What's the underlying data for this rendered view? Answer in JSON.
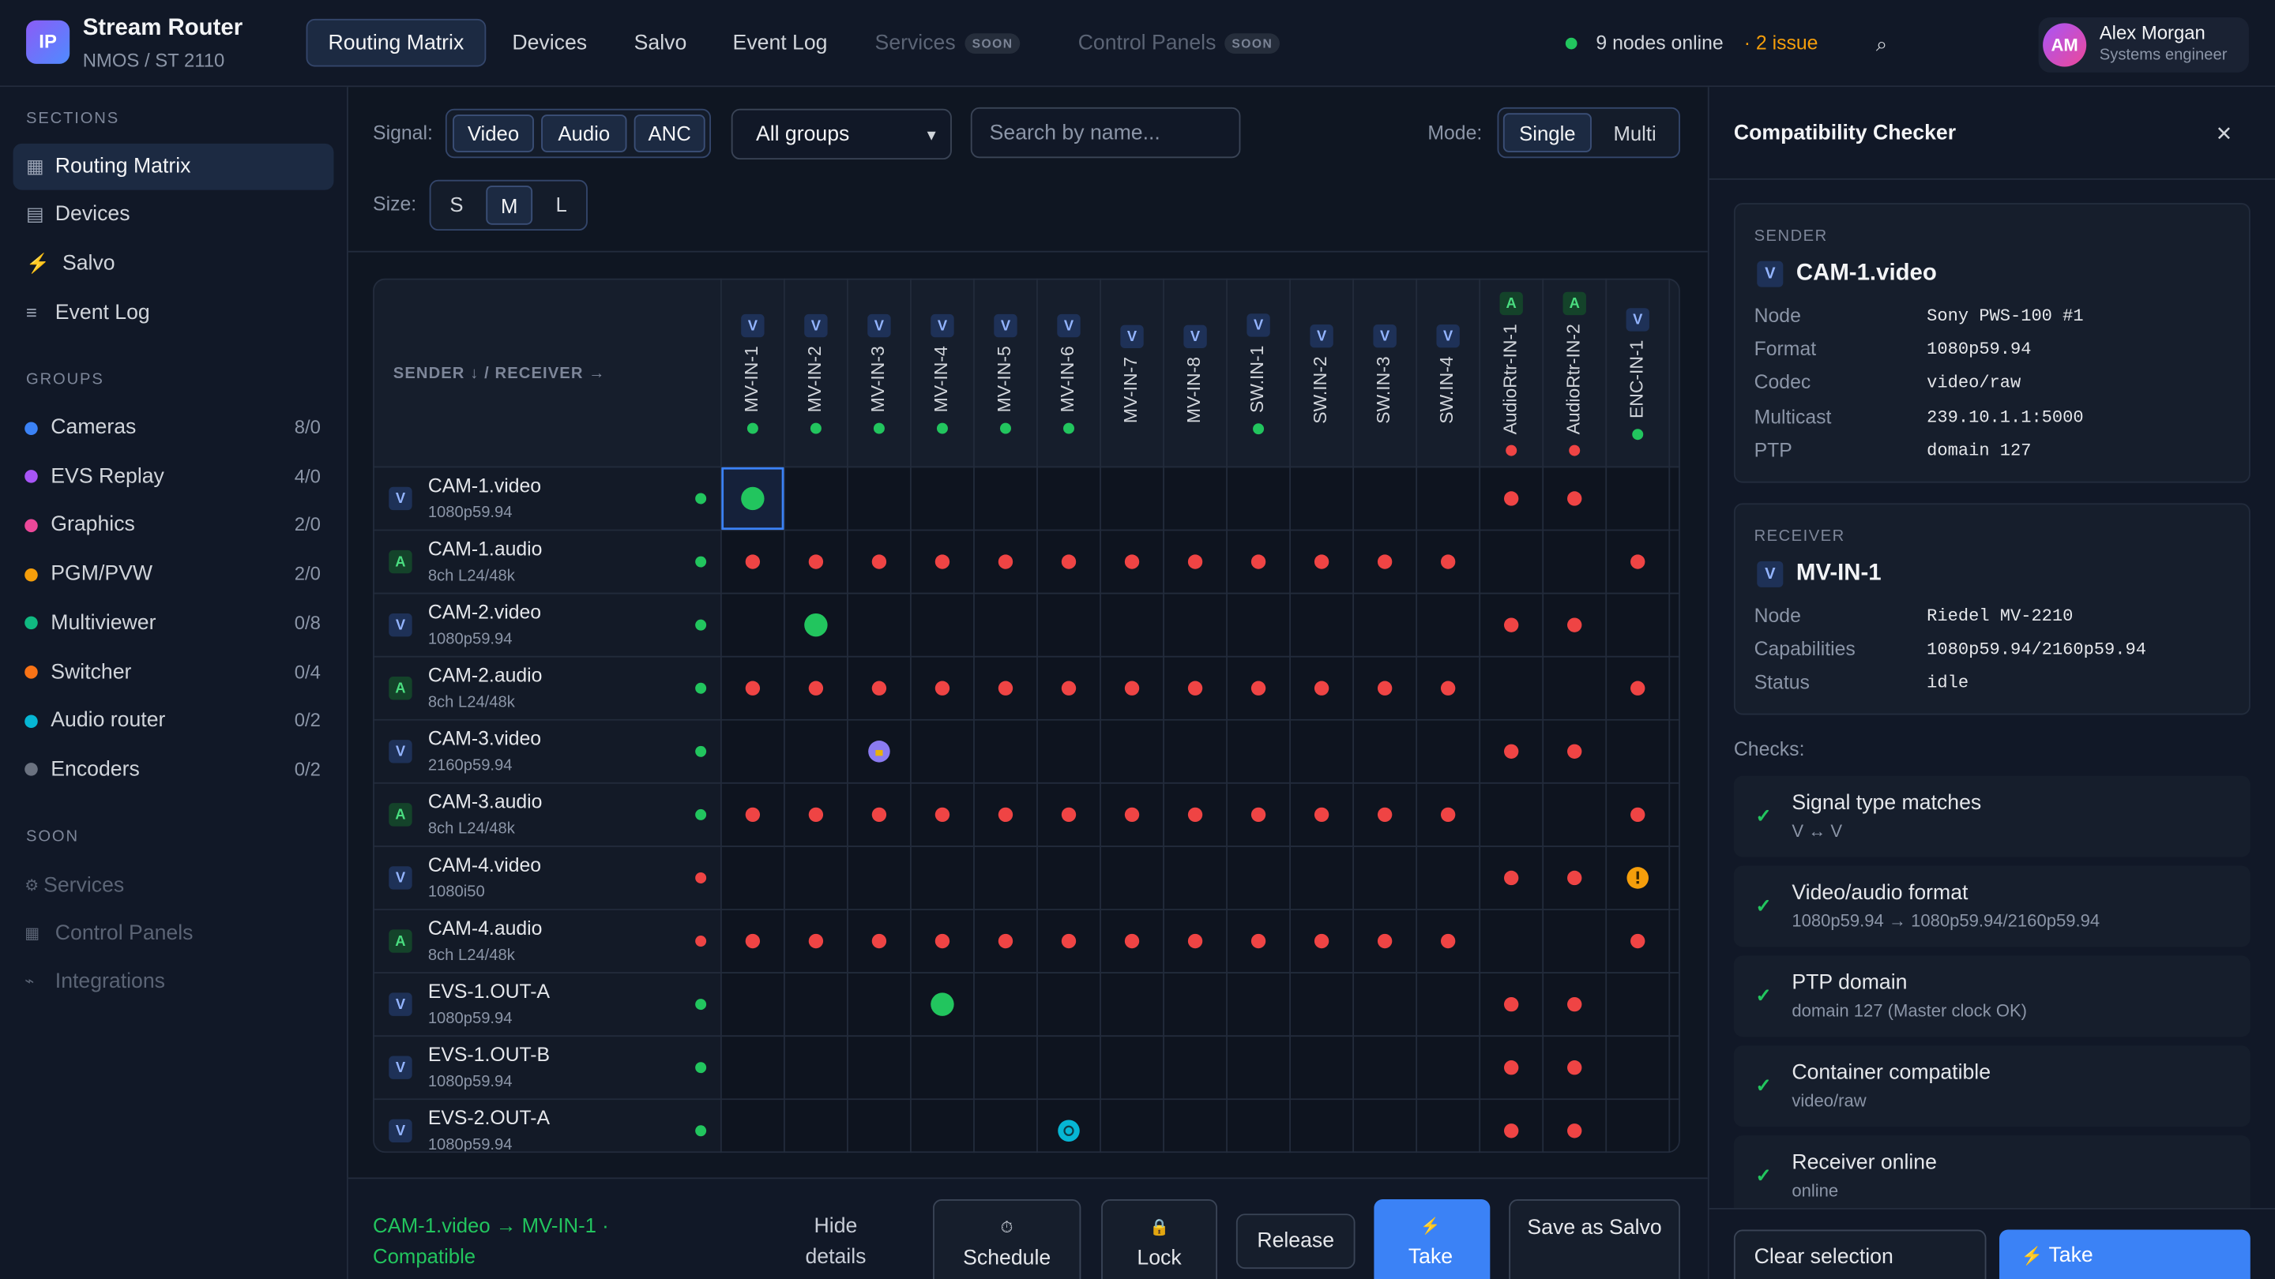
{
  "header": {
    "logo": "IP",
    "title": "Stream Router",
    "subtitle": "NMOS / ST 2110",
    "tabs": [
      {
        "label": "Routing Matrix",
        "state": "active"
      },
      {
        "label": "Devices",
        "state": "normal"
      },
      {
        "label": "Salvo",
        "state": "normal"
      },
      {
        "label": "Event Log",
        "state": "normal"
      },
      {
        "label": "Services",
        "state": "disabled",
        "badge": "SOON"
      },
      {
        "label": "Control Panels",
        "state": "disabled",
        "badge": "SOON"
      }
    ],
    "status": "9 nodes online",
    "issues": "· 2 issue",
    "search_icon": "⌕",
    "user": {
      "initials": "AM",
      "name": "Alex Morgan",
      "role": "Systems engineer"
    }
  },
  "sidebar": {
    "sections_title": "SECTIONS",
    "sections": [
      {
        "icon": "▦",
        "label": "Routing Matrix"
      },
      {
        "icon": "▤",
        "label": "Devices"
      },
      {
        "icon": "⚡",
        "label": "Salvo"
      },
      {
        "icon": "≡",
        "label": "Event Log"
      }
    ],
    "groups_title": "GROUPS",
    "groups": [
      {
        "name": "Cameras",
        "count": "8/0",
        "color": "#3b82f6"
      },
      {
        "name": "EVS Replay",
        "count": "4/0",
        "color": "#a855f7"
      },
      {
        "name": "Graphics",
        "count": "2/0",
        "color": "#ec4899"
      },
      {
        "name": "PGM/PVW",
        "count": "2/0",
        "color": "#f59e0b"
      },
      {
        "name": "Multiviewer",
        "count": "0/8",
        "color": "#10b981"
      },
      {
        "name": "Switcher",
        "count": "0/4",
        "color": "#f97316"
      },
      {
        "name": "Audio router",
        "count": "0/2",
        "color": "#06b6d4"
      },
      {
        "name": "Encoders",
        "count": "0/2",
        "color": "#6b7280"
      }
    ],
    "soon_title": "SOON",
    "soon": [
      {
        "icon": "⚙",
        "label": "Services"
      },
      {
        "icon": "▦",
        "label": "Control Panels"
      },
      {
        "icon": "⌁",
        "label": "Integrations"
      }
    ]
  },
  "filters": {
    "signal_label": "Signal:",
    "signals": [
      "Video",
      "Audio",
      "ANC"
    ],
    "group_select": "All groups",
    "select_arrow": "▾",
    "search_placeholder": "Search by name...",
    "mode_label": "Mode:",
    "modes": [
      "Single",
      "Multi"
    ],
    "size_label": "Size:",
    "sizes": [
      "S",
      "M",
      "L"
    ]
  },
  "matrix": {
    "corner": "SENDER ↓ / RECEIVER →",
    "receivers": [
      {
        "name": "MV-IN-1",
        "kind": "V",
        "dot": "green"
      },
      {
        "name": "MV-IN-2",
        "kind": "V",
        "dot": "green"
      },
      {
        "name": "MV-IN-3",
        "kind": "V",
        "dot": "green"
      },
      {
        "name": "MV-IN-4",
        "kind": "V",
        "dot": "green"
      },
      {
        "name": "MV-IN-5",
        "kind": "V",
        "dot": "green"
      },
      {
        "name": "MV-IN-6",
        "kind": "V",
        "dot": "green"
      },
      {
        "name": "MV-IN-7",
        "kind": "V",
        "dot": null
      },
      {
        "name": "MV-IN-8",
        "kind": "V",
        "dot": null
      },
      {
        "name": "SW.IN-1",
        "kind": "V",
        "dot": "green"
      },
      {
        "name": "SW.IN-2",
        "kind": "V",
        "dot": null
      },
      {
        "name": "SW.IN-3",
        "kind": "V",
        "dot": null
      },
      {
        "name": "SW.IN-4",
        "kind": "V",
        "dot": null
      },
      {
        "name": "AudioRtr-IN-1",
        "kind": "A",
        "dot": "red"
      },
      {
        "name": "AudioRtr-IN-2",
        "kind": "A",
        "dot": "red"
      },
      {
        "name": "ENC-IN-1",
        "kind": "V",
        "dot": "green"
      }
    ],
    "senders": [
      {
        "name": "CAM-1.video",
        "format": "1080p59.94",
        "kind": "V",
        "dot": "green"
      },
      {
        "name": "CAM-1.audio",
        "format": "8ch L24/48k",
        "kind": "A",
        "dot": "green"
      },
      {
        "name": "CAM-2.video",
        "format": "1080p59.94",
        "kind": "V",
        "dot": "green"
      },
      {
        "name": "CAM-2.audio",
        "format": "8ch L24/48k",
        "kind": "A",
        "dot": "green"
      },
      {
        "name": "CAM-3.video",
        "format": "2160p59.94",
        "kind": "V",
        "dot": "green"
      },
      {
        "name": "CAM-3.audio",
        "format": "8ch L24/48k",
        "kind": "A",
        "dot": "green"
      },
      {
        "name": "CAM-4.video",
        "format": "1080i50",
        "kind": "V",
        "dot": "red"
      },
      {
        "name": "CAM-4.audio",
        "format": "8ch L24/48k",
        "kind": "A",
        "dot": "red"
      },
      {
        "name": "EVS-1.OUT-A",
        "format": "1080p59.94",
        "kind": "V",
        "dot": "green"
      },
      {
        "name": "EVS-1.OUT-B",
        "format": "1080p59.94",
        "kind": "V",
        "dot": "green"
      },
      {
        "name": "EVS-2.OUT-A",
        "format": "1080p59.94",
        "kind": "V",
        "dot": "green"
      }
    ],
    "cells": [
      [
        "sel",
        "o",
        "o",
        "o",
        "o",
        "o",
        "o",
        "o",
        "o",
        "o",
        "o",
        "o",
        "x",
        "x",
        "o"
      ],
      [
        "x",
        "x",
        "x",
        "x",
        "x",
        "x",
        "x",
        "x",
        "x",
        "x",
        "x",
        "x",
        "o",
        "o",
        "x"
      ],
      [
        "o",
        "r",
        "o",
        "o",
        "o",
        "o",
        "o",
        "o",
        "o",
        "o",
        "o",
        "o",
        "x",
        "x",
        "o"
      ],
      [
        "x",
        "x",
        "x",
        "x",
        "x",
        "x",
        "x",
        "x",
        "x",
        "x",
        "x",
        "x",
        "o",
        "o",
        "x"
      ],
      [
        "o",
        "o",
        "p",
        "o",
        "o",
        "o",
        "o",
        "o",
        "o",
        "o",
        "o",
        "o",
        "x",
        "x",
        "o"
      ],
      [
        "x",
        "x",
        "x",
        "x",
        "x",
        "x",
        "x",
        "x",
        "x",
        "x",
        "x",
        "x",
        "o",
        "o",
        "x"
      ],
      [
        "o",
        "o",
        "o",
        "o",
        "o",
        "o",
        "o",
        "o",
        "o",
        "o",
        "o",
        "o",
        "x",
        "x",
        "w"
      ],
      [
        "x",
        "x",
        "x",
        "x",
        "x",
        "x",
        "x",
        "x",
        "x",
        "x",
        "x",
        "x",
        "o",
        "o",
        "x"
      ],
      [
        "o",
        "o",
        "o",
        "r",
        "o",
        "o",
        "o",
        "o",
        "o",
        "o",
        "o",
        "o",
        "x",
        "x",
        "o"
      ],
      [
        "o",
        "o",
        "o",
        "o",
        "o",
        "o",
        "o",
        "o",
        "o",
        "o",
        "o",
        "o",
        "x",
        "x",
        "o"
      ],
      [
        "o",
        "o",
        "o",
        "o",
        "o",
        "s",
        "o",
        "o",
        "o",
        "o",
        "o",
        "o",
        "x",
        "x",
        "o"
      ]
    ]
  },
  "bottom": {
    "selection": "CAM-1.video → MV-IN-1 · Compatible",
    "buttons": [
      {
        "label": "Hide details",
        "style": "plain"
      },
      {
        "label": "Schedule",
        "style": "outline",
        "icon": "⏱"
      },
      {
        "label": "Lock",
        "style": "outline",
        "icon": "🔒"
      },
      {
        "label": "Release",
        "style": "outline"
      },
      {
        "label": "Take",
        "style": "primary",
        "icon": "⚡"
      },
      {
        "label": "Save as Salvo",
        "style": "outline"
      }
    ]
  },
  "panel": {
    "title": "Compatibility Checker",
    "close": "✕",
    "sender": {
      "heading": "SENDER",
      "kind": "V",
      "name": "CAM-1.video",
      "fields": [
        [
          "Node",
          "Sony PWS-100 #1"
        ],
        [
          "Format",
          "1080p59.94"
        ],
        [
          "Codec",
          "video/raw"
        ],
        [
          "Multicast",
          "239.10.1.1:5000"
        ],
        [
          "PTP",
          "domain 127"
        ]
      ]
    },
    "receiver": {
      "heading": "RECEIVER",
      "kind": "V",
      "name": "MV-IN-1",
      "fields": [
        [
          "Node",
          "Riedel MV-2210"
        ],
        [
          "Capabilities",
          "1080p59.94/2160p59.94"
        ],
        [
          "Status",
          "idle"
        ]
      ]
    },
    "checks_label": "Checks:",
    "check_icon": "✓",
    "checks": [
      {
        "title": "Signal type matches",
        "detail": "V ↔ V"
      },
      {
        "title": "Video/audio format",
        "detail": "1080p59.94 → 1080p59.94/2160p59.94"
      },
      {
        "title": "PTP domain",
        "detail": "domain 127 (Master clock OK)"
      },
      {
        "title": "Container compatible",
        "detail": "video/raw"
      },
      {
        "title": "Receiver online",
        "detail": "online"
      }
    ],
    "footer": {
      "clear": "Clear selection",
      "take_icon": "⚡",
      "take": "Take"
    }
  }
}
